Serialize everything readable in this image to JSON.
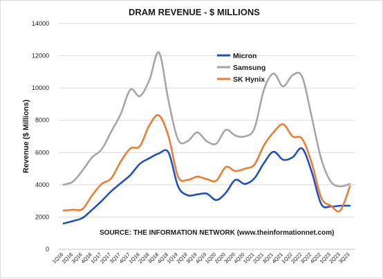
{
  "chart_data": {
    "type": "line",
    "title": "DRAM REVENUE - $ MILLIONS",
    "xlabel": "",
    "ylabel": "Revenue ($ Millions)",
    "ylim": [
      0,
      14000
    ],
    "yticks": [
      "0",
      "2000",
      "4000",
      "6000",
      "8000",
      "10000",
      "12000",
      "14000"
    ],
    "ytick_values": [
      0,
      2000,
      4000,
      6000,
      8000,
      10000,
      12000,
      14000
    ],
    "grid": true,
    "legend_position": "top-right",
    "annotation": "SOURCE: THE INFORMATION NETWORK (www.theinformationnet.com)",
    "categories": [
      "1Q16",
      "2Q16",
      "3Q16",
      "4Q16",
      "1Q17",
      "2Q17",
      "3Q17",
      "4Q17",
      "1Q18",
      "2Q18",
      "3Q18",
      "4Q18",
      "1Q19",
      "2Q19",
      "3Q19",
      "4Q19",
      "1Q20",
      "2Q20",
      "3Q20",
      "4Q20",
      "1Q21",
      "2Q21",
      "3Q21",
      "4Q21",
      "1Q22",
      "2Q22",
      "3Q22",
      "4Q22",
      "1Q23",
      "2Q23",
      "3Q23"
    ],
    "series": [
      {
        "name": "Micron",
        "color": "#1f4fc4",
        "values": [
          1600,
          1750,
          1950,
          2450,
          3000,
          3600,
          4100,
          4600,
          5300,
          5650,
          5950,
          6000,
          3900,
          3350,
          3400,
          3450,
          3050,
          3500,
          4300,
          4050,
          4400,
          5350,
          6050,
          5550,
          5700,
          6250,
          4800,
          2800,
          2650,
          2700,
          2700
        ]
      },
      {
        "name": "Samsung",
        "color": "#a6a6a6",
        "values": [
          4000,
          4200,
          4900,
          5700,
          6200,
          7300,
          8400,
          9900,
          9500,
          10500,
          12200,
          9200,
          6800,
          6700,
          7250,
          6700,
          6550,
          7400,
          7050,
          7000,
          7500,
          9900,
          10900,
          10100,
          10800,
          10700,
          8200,
          5600,
          4200,
          3900,
          4050
        ]
      },
      {
        "name": "SK Hynix",
        "color": "#ed7d31",
        "values": [
          2400,
          2450,
          2500,
          3350,
          4050,
          4400,
          5450,
          6250,
          6400,
          7700,
          8300,
          7000,
          4500,
          4300,
          4500,
          4350,
          4250,
          5100,
          4850,
          5000,
          5250,
          6450,
          7250,
          7750,
          7000,
          6850,
          5350,
          3200,
          2700,
          2400,
          3900
        ]
      }
    ]
  }
}
